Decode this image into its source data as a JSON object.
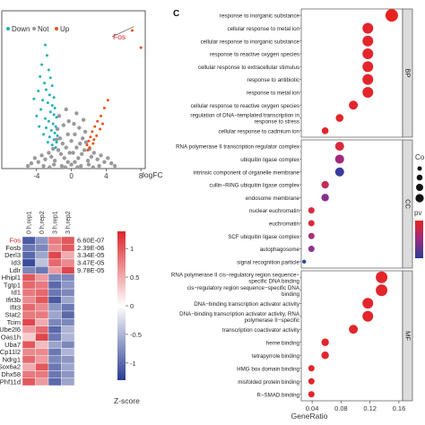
{
  "panel_c_label": "C",
  "chart_data": [
    {
      "type": "scatter",
      "name": "volcano",
      "legend": {
        "down": "Down",
        "not": "Not",
        "up": "Up"
      },
      "xlabel": "logFC",
      "xticks": [
        -4,
        0,
        4,
        8
      ],
      "xlim": [
        -8,
        8.5
      ],
      "ylim": [
        0,
        12
      ],
      "annotation": {
        "label": "Fos",
        "x": 7.2,
        "y": 10.8
      },
      "up_points": [
        [
          7.0,
          10.5
        ],
        [
          8.0,
          9.2
        ],
        [
          4.2,
          5.2
        ],
        [
          3.8,
          4.6
        ],
        [
          3.4,
          4.0
        ],
        [
          3.0,
          3.6
        ],
        [
          2.7,
          3.2
        ],
        [
          2.4,
          2.8
        ],
        [
          2.2,
          2.4
        ],
        [
          2.0,
          2.1
        ],
        [
          1.8,
          1.8
        ],
        [
          2.9,
          2.5
        ],
        [
          3.3,
          3.0
        ],
        [
          2.5,
          1.9
        ],
        [
          2.1,
          1.6
        ],
        [
          1.9,
          1.4
        ],
        [
          3.6,
          3.4
        ],
        [
          2.6,
          2.2
        ]
      ],
      "down_points": [
        [
          -3.0,
          9.4
        ],
        [
          -2.8,
          8.6
        ],
        [
          -3.4,
          7.9
        ],
        [
          -2.6,
          7.5
        ],
        [
          -3.6,
          7.0
        ],
        [
          -2.4,
          6.9
        ],
        [
          -3.1,
          6.5
        ],
        [
          -2.2,
          6.3
        ],
        [
          -2.9,
          6.0
        ],
        [
          -3.8,
          5.9
        ],
        [
          -2.5,
          5.6
        ],
        [
          -2.0,
          5.4
        ],
        [
          -3.3,
          5.2
        ],
        [
          -2.7,
          5.0
        ],
        [
          -2.2,
          4.8
        ],
        [
          -1.9,
          4.6
        ],
        [
          -3.5,
          4.5
        ],
        [
          -2.4,
          4.3
        ],
        [
          -2.0,
          4.1
        ],
        [
          -1.7,
          3.9
        ],
        [
          -3.0,
          3.8
        ],
        [
          -2.6,
          3.6
        ],
        [
          -2.1,
          3.4
        ],
        [
          -1.8,
          3.2
        ],
        [
          -2.9,
          3.1
        ],
        [
          -2.3,
          2.9
        ],
        [
          -1.9,
          2.7
        ],
        [
          -1.6,
          2.5
        ],
        [
          -2.5,
          2.4
        ],
        [
          -2.0,
          2.2
        ],
        [
          -1.7,
          2.0
        ],
        [
          -3.2,
          2.6
        ],
        [
          -2.7,
          2.0
        ],
        [
          -2.2,
          1.8
        ],
        [
          -1.8,
          1.6
        ],
        [
          -4.0,
          4.0
        ],
        [
          -3.7,
          3.2
        ],
        [
          -4.3,
          5.3
        ]
      ],
      "not_points": [
        [
          0,
          0.3
        ],
        [
          0.4,
          0.5
        ],
        [
          -0.4,
          0.5
        ],
        [
          0.8,
          0.8
        ],
        [
          -0.8,
          0.8
        ],
        [
          1.2,
          1.1
        ],
        [
          -1.2,
          1.1
        ],
        [
          1.5,
          1.4
        ],
        [
          -1.5,
          1.4
        ],
        [
          0.2,
          1.2
        ],
        [
          -0.2,
          1.2
        ],
        [
          0.6,
          1.6
        ],
        [
          -0.6,
          1.6
        ],
        [
          1.0,
          1.9
        ],
        [
          -1.0,
          1.9
        ],
        [
          0,
          2.1
        ],
        [
          1.3,
          2.3
        ],
        [
          -1.3,
          2.3
        ],
        [
          0.4,
          2.6
        ],
        [
          -0.4,
          2.6
        ],
        [
          1.6,
          2.8
        ],
        [
          -1.6,
          3.0
        ],
        [
          0.9,
          3.1
        ],
        [
          -0.9,
          3.3
        ],
        [
          1.9,
          0.6
        ],
        [
          -1.9,
          0.6
        ],
        [
          2.3,
          0.9
        ],
        [
          -2.3,
          0.9
        ],
        [
          2.6,
          1.2
        ],
        [
          -2.6,
          1.2
        ],
        [
          3.0,
          0.7
        ],
        [
          -3.0,
          0.7
        ],
        [
          3.4,
          1.0
        ],
        [
          -3.4,
          1.0
        ],
        [
          3.8,
          0.5
        ],
        [
          -3.8,
          0.5
        ],
        [
          4.2,
          0.8
        ],
        [
          -4.2,
          0.8
        ],
        [
          4.6,
          0.4
        ],
        [
          -4.6,
          0.4
        ],
        [
          1.1,
          0.2
        ],
        [
          -1.1,
          0.2
        ],
        [
          2.0,
          0.3
        ],
        [
          -2.0,
          0.3
        ],
        [
          0.7,
          0.1
        ],
        [
          -0.7,
          0.1
        ],
        [
          1.7,
          2.0
        ],
        [
          -1.7,
          2.2
        ],
        [
          2.1,
          1.5
        ],
        [
          -2.1,
          1.5
        ],
        [
          0.3,
          3.4
        ],
        [
          -0.3,
          3.6
        ],
        [
          1.4,
          3.7
        ],
        [
          -1.4,
          4.0
        ],
        [
          0.6,
          4.2
        ],
        [
          -0.6,
          4.5
        ],
        [
          2.5,
          0.1
        ],
        [
          -2.5,
          0.1
        ],
        [
          3.2,
          0.2
        ],
        [
          -3.2,
          0.2
        ],
        [
          5.0,
          0.2
        ],
        [
          -5.0,
          0.2
        ]
      ]
    },
    {
      "type": "heatmap",
      "name": "heatmap",
      "columns": [
        "0 h,rep1",
        "0 h,rep2",
        "3 h,rep1",
        "3 h,rep2"
      ],
      "rows": [
        "Fos",
        "Fosb",
        "Derl3",
        "Id3",
        "Ldlr",
        "Hhipl1",
        "Tgtp1",
        "Id1",
        "Ifit3b",
        "Ifit3",
        "Stat2",
        "Tcim",
        "Ube2l6",
        "Oas1h",
        "Uba7",
        "Cp11l2",
        "Ndrg1",
        "Sox6a2",
        "Dhx58",
        "Phf11d"
      ],
      "pvalues": [
        "6.60E-07",
        "2.39E-06",
        "3.34E-05",
        "3.47E-05",
        "9.78E-05"
      ],
      "values": [
        [
          -1.1,
          -0.7,
          0.8,
          1.0
        ],
        [
          -0.9,
          -0.8,
          0.7,
          1.0
        ],
        [
          -1.0,
          -0.6,
          1.1,
          0.5
        ],
        [
          -1.2,
          -0.4,
          0.9,
          0.7
        ],
        [
          -0.8,
          -0.9,
          0.6,
          1.1
        ],
        [
          1.0,
          0.6,
          -0.8,
          -0.8
        ],
        [
          0.9,
          0.8,
          -1.0,
          -0.7
        ],
        [
          0.8,
          0.9,
          -0.9,
          -0.8
        ],
        [
          0.7,
          1.0,
          -1.1,
          -0.6
        ],
        [
          0.9,
          0.7,
          -0.7,
          -0.9
        ],
        [
          0.8,
          0.8,
          -0.6,
          -1.0
        ],
        [
          1.1,
          0.5,
          -0.8,
          -0.8
        ],
        [
          0.6,
          0.9,
          -1.0,
          -0.5
        ],
        [
          0.3,
          1.1,
          -0.9,
          -0.5
        ],
        [
          1.0,
          0.4,
          -0.6,
          -0.8
        ],
        [
          0.7,
          0.7,
          -0.9,
          -0.5
        ],
        [
          0.9,
          0.6,
          -0.8,
          -0.7
        ],
        [
          0.5,
          1.0,
          -0.9,
          -0.6
        ],
        [
          0.8,
          0.8,
          -0.9,
          -0.7
        ],
        [
          1.0,
          0.6,
          -1.0,
          -0.6
        ]
      ],
      "colorbar": {
        "label": "Z-score",
        "ticks": [
          1,
          0.5,
          0,
          -0.5,
          -1
        ],
        "range": [
          -1.3,
          1.3
        ],
        "colors": [
          "#2a3c91",
          "#ffffff",
          "#d9262d"
        ]
      }
    },
    {
      "type": "scatter",
      "name": "go-dotplot",
      "xlabel": "GeneRatio",
      "xticks": [
        0.04,
        0.08,
        0.12,
        0.16
      ],
      "xlim": [
        0.025,
        0.165
      ],
      "facets": [
        {
          "label": "BP",
          "terms": [
            {
              "term": "response to inorganic substance",
              "ratio": 0.15,
              "size": 7,
              "color": "#e8231f"
            },
            {
              "term": "cellular response to metal ion",
              "ratio": 0.117,
              "size": 6,
              "color": "#e2262c"
            },
            {
              "term": "cellular response to inorganic substance",
              "ratio": 0.117,
              "size": 6,
              "color": "#e2262c"
            },
            {
              "term": "response to reactive oxygen species",
              "ratio": 0.117,
              "size": 6,
              "color": "#e2262c"
            },
            {
              "term": "cellular response to extracellular stimulus",
              "ratio": 0.117,
              "size": 6,
              "color": "#e2262c"
            },
            {
              "term": "response to antibiotic",
              "ratio": 0.117,
              "size": 6,
              "color": "#e2262c"
            },
            {
              "term": "response to metal ion",
              "ratio": 0.117,
              "size": 6,
              "color": "#e2262c"
            },
            {
              "term": "cellular response to reactive oxygen species",
              "ratio": 0.097,
              "size": 5,
              "color": "#e2262c"
            },
            {
              "term": "regulation of DNA−templated transcription in\nresponse to stress",
              "ratio": 0.078,
              "size": 4.3,
              "color": "#e2262c"
            },
            {
              "term": "cellular response to cadmium ion",
              "ratio": 0.058,
              "size": 3.8,
              "color": "#e2262c"
            }
          ]
        },
        {
          "label": "CC",
          "terms": [
            {
              "term": "RNA polymerase II transcription regulator complex",
              "ratio": 0.078,
              "size": 5,
              "color": "#d92a3c"
            },
            {
              "term": "ubiquitin ligase complex",
              "ratio": 0.078,
              "size": 5,
              "color": "#a2287a"
            },
            {
              "term": "intrinsic component of organelle membrane",
              "ratio": 0.078,
              "size": 5,
              "color": "#3a3b9a"
            },
            {
              "term": "cullin−RING ubiquitin ligase complex",
              "ratio": 0.058,
              "size": 4.2,
              "color": "#c72a55"
            },
            {
              "term": "endosome membrane",
              "ratio": 0.058,
              "size": 4.2,
              "color": "#8a2e8b"
            },
            {
              "term": "nuclear euchromatin",
              "ratio": 0.039,
              "size": 3.5,
              "color": "#d92a3c"
            },
            {
              "term": "euchromatin",
              "ratio": 0.039,
              "size": 3.5,
              "color": "#d92a3c"
            },
            {
              "term": "SCF ubiquitin ligase complex",
              "ratio": 0.039,
              "size": 3.5,
              "color": "#a6307a"
            },
            {
              "term": "autophagosome",
              "ratio": 0.039,
              "size": 3.5,
              "color": "#8e3393"
            },
            {
              "term": "signal recognition particle",
              "ratio": 0.029,
              "size": 2.2,
              "color": "#2a4c8f"
            }
          ]
        },
        {
          "label": "MF",
          "terms": [
            {
              "term": "RNA polymerase II cis−regulatory region sequence−\nspecific DNA binding",
              "ratio": 0.136,
              "size": 6.5,
              "color": "#e2262c"
            },
            {
              "term": "cis−regulatory region sequence−specific DNA\nbinding",
              "ratio": 0.136,
              "size": 6.5,
              "color": "#e2262c"
            },
            {
              "term": "DNA−binding transcription activator activity",
              "ratio": 0.117,
              "size": 6,
              "color": "#e2262c"
            },
            {
              "term": "DNA−binding transcription activator activity, RNA\npolymerase II−specific",
              "ratio": 0.117,
              "size": 6,
              "color": "#e2262c"
            },
            {
              "term": "transcription coactivator activity",
              "ratio": 0.097,
              "size": 5,
              "color": "#e2262c"
            },
            {
              "term": "heme binding",
              "ratio": 0.058,
              "size": 4.2,
              "color": "#e2262c"
            },
            {
              "term": "tetrapyrrole binding",
              "ratio": 0.058,
              "size": 4.2,
              "color": "#e2262c"
            },
            {
              "term": "HMG box domain binding",
              "ratio": 0.039,
              "size": 3.5,
              "color": "#e2262c"
            },
            {
              "term": "misfolded protein binding",
              "ratio": 0.039,
              "size": 3.5,
              "color": "#e2262c"
            },
            {
              "term": "R−SMAD binding",
              "ratio": 0.039,
              "size": 3.5,
              "color": "#e2262c"
            }
          ]
        }
      ],
      "legend": {
        "count_label": "Co",
        "pvalue_label": "pv"
      }
    }
  ]
}
